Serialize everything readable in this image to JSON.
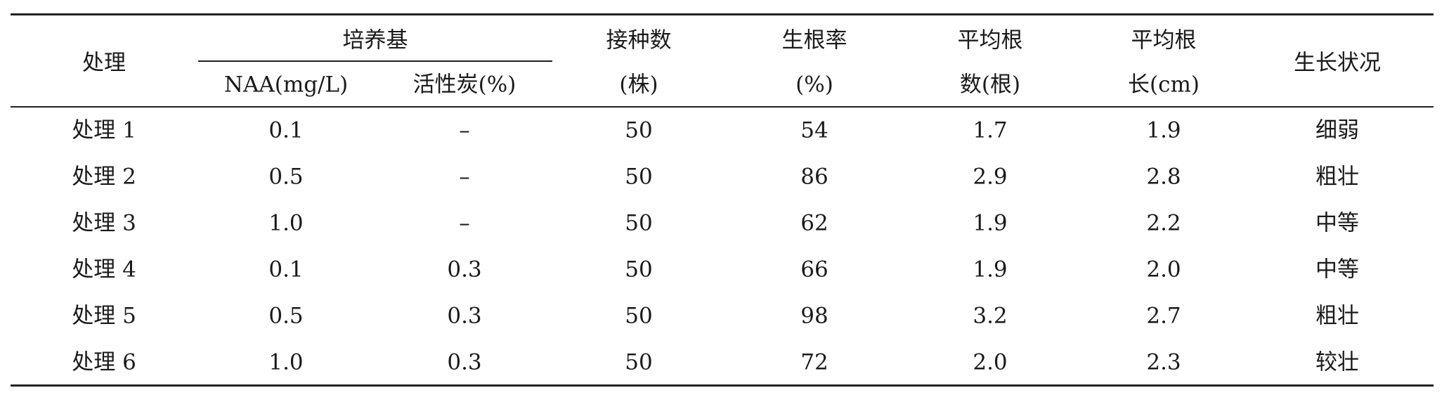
{
  "table": {
    "headers": {
      "treatment": "处理",
      "medium_group": "培养基",
      "naa": "NAA(mg/L)",
      "charcoal": "活性炭(%)",
      "inoculated_line1": "接种数",
      "inoculated_line2": "(株)",
      "rooting_rate_line1": "生根率",
      "rooting_rate_line2": "(%)",
      "root_number_line1": "平均根",
      "root_number_line2": "数(根)",
      "root_length_line1": "平均根",
      "root_length_line2": "长(cm)",
      "growth": "生长状况"
    },
    "rows": [
      [
        "处理 1",
        "0.1",
        "–",
        "50",
        "54",
        "1.7",
        "1.9",
        "细弱"
      ],
      [
        "处理 2",
        "0.5",
        "–",
        "50",
        "86",
        "2.9",
        "2.8",
        "粗壮"
      ],
      [
        "处理 3",
        "1.0",
        "–",
        "50",
        "62",
        "1.9",
        "2.2",
        "中等"
      ],
      [
        "处理 4",
        "0.1",
        "0.3",
        "50",
        "66",
        "1.9",
        "2.0",
        "中等"
      ],
      [
        "处理 5",
        "0.5",
        "0.3",
        "50",
        "98",
        "3.2",
        "2.7",
        "粗壮"
      ],
      [
        "处理 6",
        "1.0",
        "0.3",
        "50",
        "72",
        "2.0",
        "2.3",
        "较壮"
      ]
    ]
  }
}
